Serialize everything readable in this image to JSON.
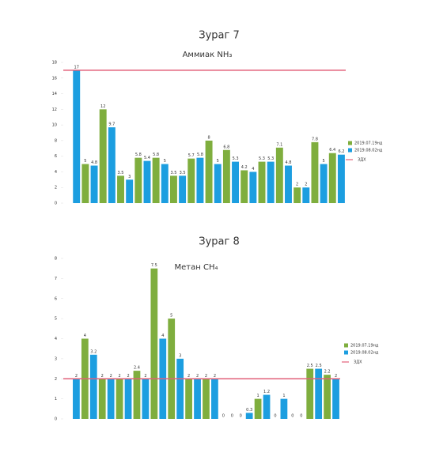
{
  "chart_data": [
    {
      "type": "bar",
      "heading": "Зураг 7",
      "title": "Аммиак NH₃",
      "series": [
        {
          "name": "2019.07.19нд",
          "color": "#7fae3e",
          "values": [
            null,
            5,
            12,
            3.5,
            5.8,
            5.8,
            3.5,
            5.7,
            8,
            6.8,
            4.2,
            5.3,
            7.1,
            2,
            7.8,
            6.4
          ]
        },
        {
          "name": "2019.08.02нд",
          "color": "#1c9ee0",
          "values": [
            17,
            4.8,
            9.7,
            3,
            5.4,
            5,
            3.5,
            5.8,
            5,
            5.3,
            4,
            5.3,
            4.8,
            2,
            5,
            6.2
          ]
        }
      ],
      "threshold": {
        "name": "ЗДХ",
        "value": 17,
        "color": "#e2607a"
      },
      "ylim": [
        0,
        18
      ],
      "yticks": [
        0,
        2,
        4,
        6,
        8,
        10,
        12,
        14,
        16,
        18
      ],
      "legend": "right"
    },
    {
      "type": "bar",
      "heading": "Зураг 8",
      "title": "Метан CH₄",
      "series": [
        {
          "name": "2019.07.19нд",
          "color": "#7fae3e",
          "values": [
            null,
            4,
            2,
            2,
            2.4,
            7.5,
            5,
            2,
            2,
            0,
            0,
            1,
            0,
            0,
            2.5,
            2.2
          ]
        },
        {
          "name": "2019.08.02нд",
          "color": "#1c9ee0",
          "values": [
            2,
            3.2,
            2,
            2,
            2,
            4,
            3,
            2,
            2,
            0,
            0.3,
            1.2,
            1,
            0,
            2.5,
            2
          ]
        }
      ],
      "threshold": {
        "name": "ЗДХ",
        "value": 2,
        "color": "#e2607a"
      },
      "ylim": [
        0,
        8
      ],
      "yticks": [
        0,
        1,
        2,
        3,
        4,
        5,
        6,
        7,
        8
      ],
      "legend": "right"
    }
  ]
}
